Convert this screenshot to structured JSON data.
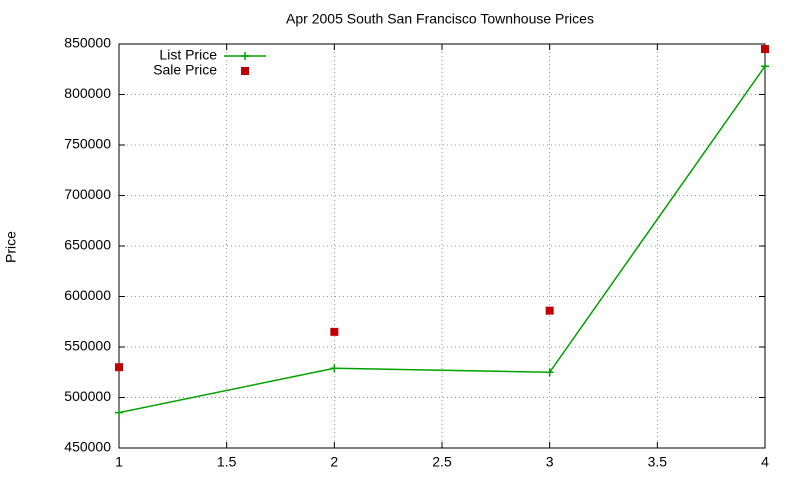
{
  "chart_data": {
    "type": "line",
    "title": "Apr 2005 South San Francisco Townhouse Prices",
    "y_label": "Price",
    "x": [
      1,
      2,
      3,
      4
    ],
    "series": [
      {
        "name": "List Price",
        "color": "#00a000",
        "style": "linespoints",
        "values": [
          485000,
          529000,
          525000,
          828000
        ]
      },
      {
        "name": "Sale Price",
        "color": "#c00000",
        "style": "points",
        "values": [
          530000,
          565000,
          586000,
          845000
        ]
      }
    ],
    "xlim": [
      1,
      4
    ],
    "xticks": [
      1,
      1.5,
      2,
      2.5,
      3,
      3.5,
      4
    ],
    "ylim": [
      450000,
      850000
    ],
    "yticks": [
      450000,
      500000,
      550000,
      600000,
      650000,
      700000,
      750000,
      800000,
      850000
    ],
    "grid": true,
    "legend": "top-left"
  }
}
